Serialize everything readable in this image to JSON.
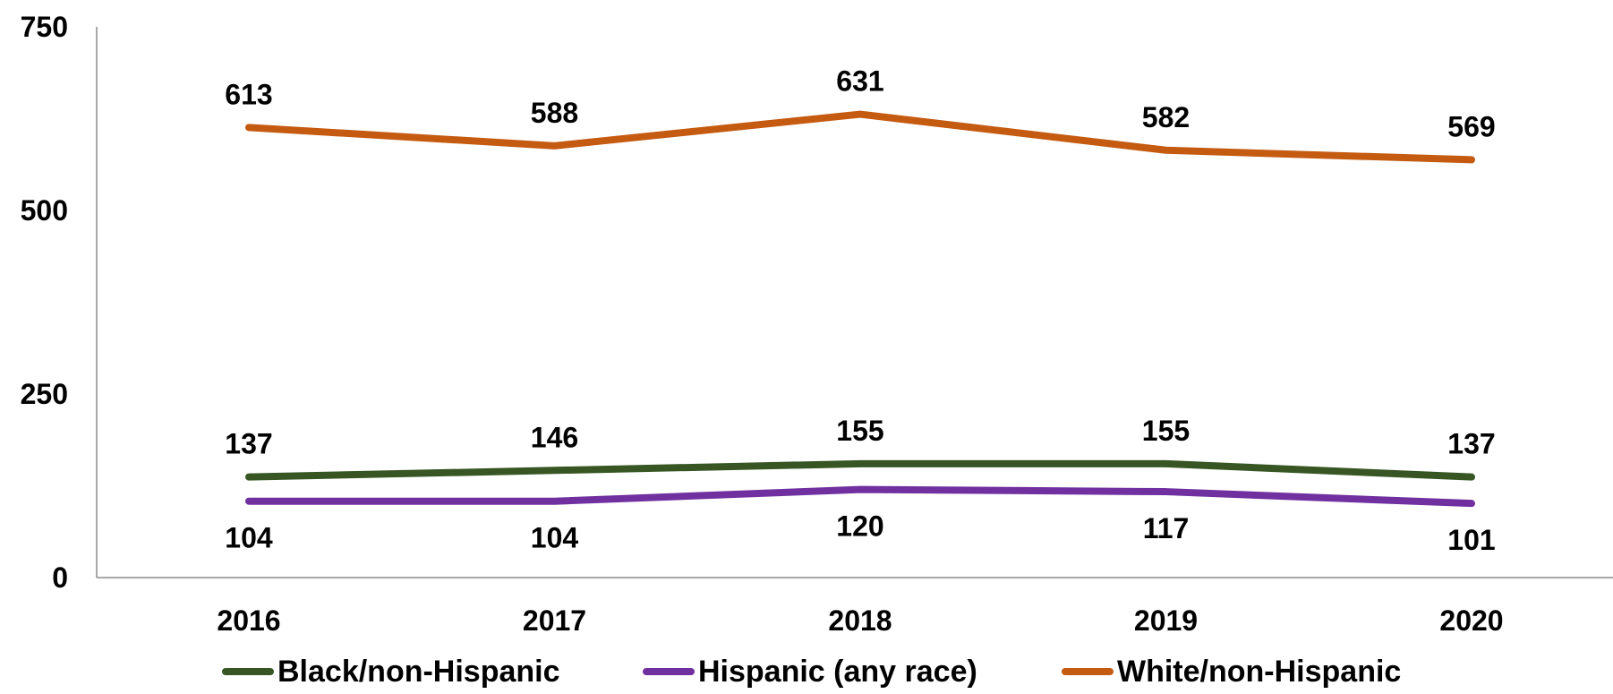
{
  "chart_data": {
    "type": "line",
    "title": "",
    "xlabel": "",
    "ylabel": "",
    "categories": [
      "2016",
      "2017",
      "2018",
      "2019",
      "2020"
    ],
    "ylim": [
      0,
      750
    ],
    "yticks": [
      0,
      250,
      500,
      750
    ],
    "grid": false,
    "legend_position": "bottom",
    "series": [
      {
        "name": "Black/non-Hispanic",
        "color": "#375623",
        "values": [
          137,
          146,
          155,
          155,
          137
        ],
        "label_position": "above"
      },
      {
        "name": "Hispanic (any race)",
        "color": "#7030A0",
        "values": [
          104,
          104,
          120,
          117,
          101
        ],
        "label_position": "below"
      },
      {
        "name": "White/non-Hispanic",
        "color": "#C55A11",
        "values": [
          613,
          588,
          631,
          582,
          569
        ],
        "label_position": "above"
      }
    ]
  }
}
